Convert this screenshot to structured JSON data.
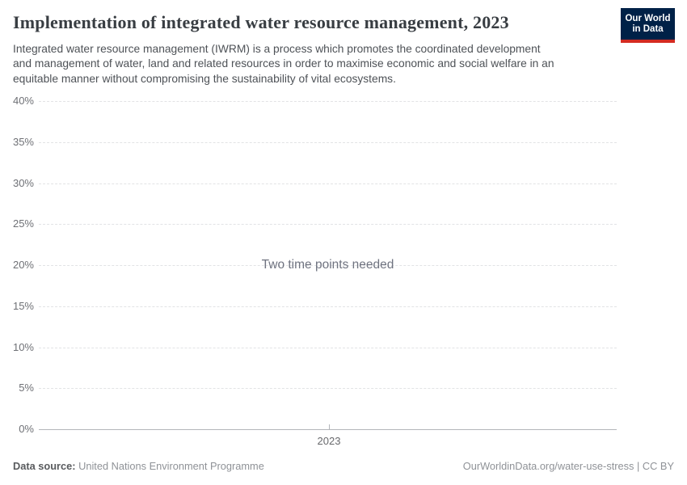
{
  "header": {
    "title": "Implementation of integrated water resource management, 2023",
    "subtitle_lines": [
      "Integrated water resource management (IWRM) is a process which promotes the coordinated development",
      "and management of water, land and related resources in order to maximise economic and social welfare in an",
      "equitable manner without compromising the sustainability of vital ecosystems."
    ],
    "logo": {
      "line1": "Our World",
      "line2": "in Data",
      "bg_color": "#002147",
      "accent_color": "#d42b21"
    }
  },
  "chart": {
    "empty_message": "Two time points needed",
    "x_axis": {
      "tick_label": "2023"
    },
    "y_axis": {
      "ticks": [
        "40%",
        "35%",
        "30%",
        "25%",
        "20%",
        "15%",
        "10%",
        "5%",
        "0%"
      ]
    }
  },
  "chart_data": {
    "type": "line",
    "title": "Implementation of integrated water resource management, 2023",
    "x_tick_labels": [
      "2023"
    ],
    "y_tick_labels": [
      "0%",
      "5%",
      "10%",
      "15%",
      "20%",
      "25%",
      "30%",
      "35%",
      "40%"
    ],
    "ylim": [
      0,
      40
    ],
    "series": [],
    "annotations": [
      "Two time points needed"
    ],
    "grid": true,
    "legend": false
  },
  "footer": {
    "source_label": "Data source:",
    "source_value": "United Nations Environment Programme",
    "attribution": "OurWorldinData.org/water-use-stress | CC BY"
  }
}
